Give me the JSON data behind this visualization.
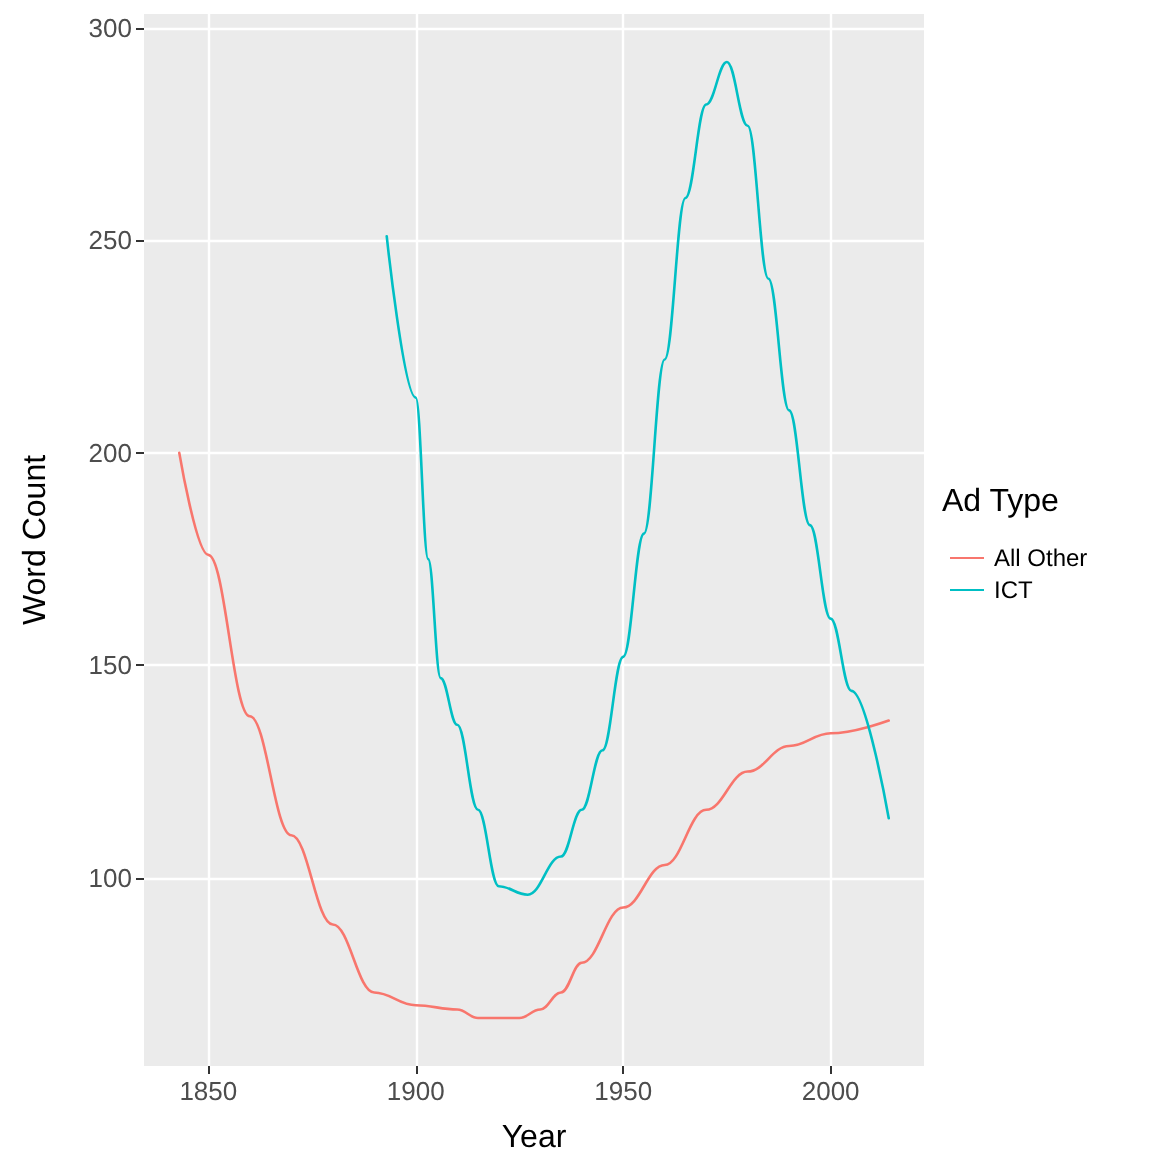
{
  "chart_data": {
    "type": "line",
    "xlabel": "Year",
    "ylabel": "Word Count",
    "legend_title": "Ad Type",
    "legend": "right",
    "xlim": [
      1834.5,
      2022.5
    ],
    "xticks": [
      1850,
      1900,
      1950,
      2000
    ],
    "ylim": [
      55.7,
      303.3
    ],
    "yticks": [
      100,
      150,
      200,
      250,
      300
    ],
    "grid": true,
    "marker": "none",
    "line_style": "solid",
    "series": [
      {
        "name": "All Other",
        "color": "#f8766d",
        "x": [
          1843,
          1850,
          1860,
          1870,
          1880,
          1890,
          1900,
          1910,
          1915,
          1925,
          1930,
          1935,
          1940,
          1950,
          1960,
          1970,
          1980,
          1990,
          2000,
          2014
        ],
        "values": [
          200,
          176,
          138,
          110,
          89,
          73,
          70,
          69,
          67,
          67,
          69,
          73,
          80,
          93,
          103,
          116,
          125,
          131,
          134,
          137
        ]
      },
      {
        "name": "ICT",
        "color": "#00bfc4",
        "x": [
          1893,
          1900,
          1903,
          1906,
          1910,
          1915,
          1920,
          1927,
          1935,
          1940,
          1945,
          1950,
          1955,
          1960,
          1965,
          1970,
          1975,
          1980,
          1985,
          1990,
          1995,
          2000,
          2005,
          2014
        ],
        "values": [
          251,
          213,
          175,
          147,
          136,
          116,
          98,
          96,
          105,
          116,
          130,
          152,
          181,
          222,
          260,
          282,
          292,
          277,
          241,
          210,
          183,
          161,
          144,
          114
        ]
      }
    ]
  }
}
